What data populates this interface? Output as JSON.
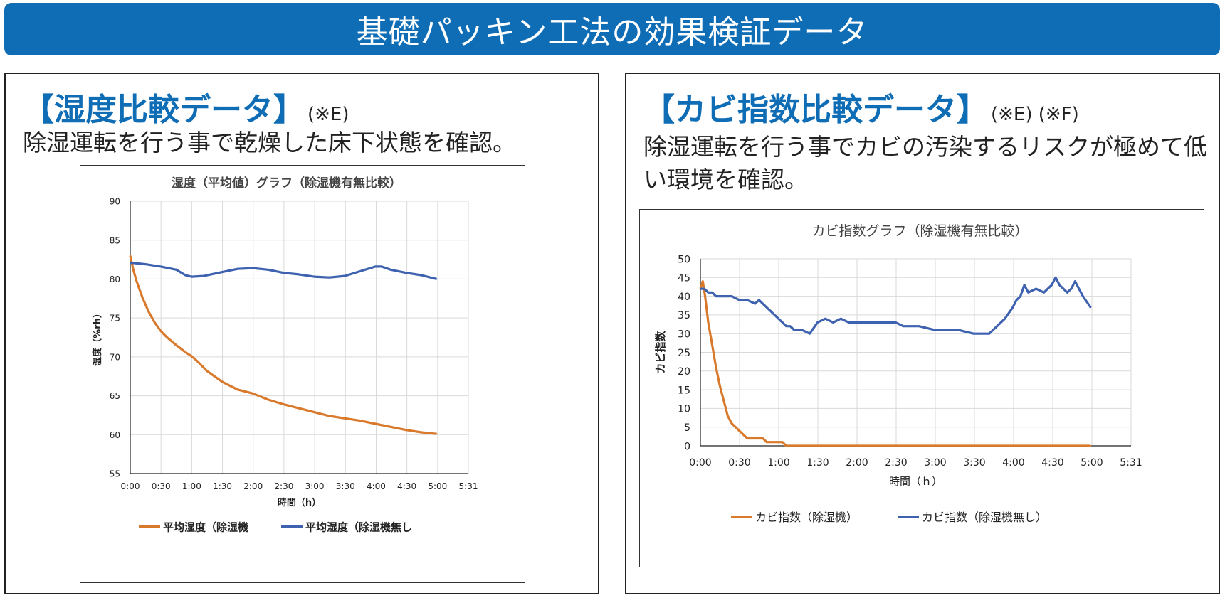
{
  "banner": {
    "title": "基礎パッキン工法の効果検証データ"
  },
  "left_panel": {
    "heading": "【湿度比較データ】",
    "heading_note": "(※E)",
    "description": "除湿運転を行う事で乾燥した床下状態を確認。"
  },
  "right_panel": {
    "heading": "【カビ指数比較データ】",
    "heading_note": "(※E) (※F)",
    "description": "除湿運転を行う事でカビの汚染するリスクが極めて低い環境を確認。"
  },
  "colors": {
    "banner": "#0f6db6",
    "heading": "#0f6db6",
    "series_orange": "#d9792c",
    "series_blue": "#3f62b0",
    "grid": "#d9d9d9"
  },
  "chart_data": [
    {
      "type": "line",
      "title": "湿度（平均値）グラフ（除湿機有無比較）",
      "xlabel": "時間（h）",
      "ylabel": "湿度（%rh）",
      "xlim": [
        0,
        5.5167
      ],
      "ylim": [
        55,
        90
      ],
      "y_ticks": [
        55,
        60,
        65,
        70,
        75,
        80,
        85,
        90
      ],
      "x_ticks": [
        "0:00",
        "0:30",
        "1:00",
        "1:30",
        "2:00",
        "2:30",
        "3:00",
        "3:30",
        "4:00",
        "4:30",
        "5:00",
        "5:31"
      ],
      "grid": true,
      "legend": "bottom",
      "series": [
        {
          "name": "平均湿度（除湿機",
          "color": "#d9792c",
          "x": [
            0,
            0.05,
            0.1,
            0.2,
            0.3,
            0.4,
            0.5,
            0.6,
            0.75,
            0.9,
            1.0,
            1.1,
            1.25,
            1.5,
            1.75,
            2.0,
            2.25,
            2.5,
            2.75,
            3.0,
            3.25,
            3.5,
            3.75,
            4.0,
            4.25,
            4.5,
            4.75,
            5.0
          ],
          "y": [
            83,
            81.2,
            79.8,
            77.6,
            75.8,
            74.4,
            73.3,
            72.5,
            71.5,
            70.6,
            70.1,
            69.4,
            68.2,
            66.8,
            65.8,
            65.3,
            64.5,
            63.9,
            63.4,
            62.9,
            62.4,
            62.1,
            61.8,
            61.4,
            61.0,
            60.6,
            60.3,
            60.1
          ]
        },
        {
          "name": "平均湿度（除湿機無し",
          "color": "#3f62b0",
          "x": [
            0,
            0.25,
            0.5,
            0.75,
            0.9,
            1.0,
            1.2,
            1.5,
            1.75,
            2.0,
            2.25,
            2.5,
            2.75,
            3.0,
            3.25,
            3.5,
            3.75,
            4.0,
            4.1,
            4.25,
            4.5,
            4.75,
            5.0
          ],
          "y": [
            82.1,
            81.9,
            81.6,
            81.2,
            80.5,
            80.3,
            80.4,
            80.9,
            81.3,
            81.4,
            81.2,
            80.8,
            80.6,
            80.3,
            80.2,
            80.4,
            81.0,
            81.6,
            81.6,
            81.2,
            80.8,
            80.5,
            80.0
          ]
        }
      ]
    },
    {
      "type": "line",
      "title": "カビ指数グラフ（除湿機有無比較）",
      "xlabel": "時間（ｈ）",
      "ylabel": "カビ指数",
      "xlim": [
        0,
        5.5167
      ],
      "ylim": [
        0,
        50
      ],
      "y_ticks": [
        0,
        5,
        10,
        15,
        20,
        25,
        30,
        35,
        40,
        45,
        50
      ],
      "x_ticks": [
        "0:00",
        "0:30",
        "1:00",
        "1:30",
        "2:00",
        "2:30",
        "3:00",
        "3:30",
        "4:00",
        "4:30",
        "5:00",
        "5:31"
      ],
      "grid": true,
      "legend": "bottom",
      "series": [
        {
          "name": "カビ指数（除湿機）",
          "color": "#d9792c",
          "x": [
            0,
            0.03,
            0.06,
            0.1,
            0.15,
            0.2,
            0.25,
            0.3,
            0.35,
            0.4,
            0.45,
            0.5,
            0.55,
            0.6,
            0.7,
            0.8,
            0.85,
            0.95,
            1.05,
            1.1,
            1.2,
            2.0,
            3.0,
            4.0,
            5.0
          ],
          "y": [
            42,
            44,
            40,
            33,
            27,
            21,
            16,
            12,
            8,
            6,
            5,
            4,
            3,
            2,
            2,
            2,
            1,
            1,
            1,
            0,
            0,
            0,
            0,
            0,
            0
          ]
        },
        {
          "name": "カビ指数（除湿機無し）",
          "color": "#3f62b0",
          "x": [
            0,
            0.05,
            0.1,
            0.15,
            0.2,
            0.3,
            0.4,
            0.5,
            0.6,
            0.7,
            0.75,
            0.8,
            0.85,
            0.9,
            0.95,
            1.0,
            1.05,
            1.1,
            1.15,
            1.2,
            1.25,
            1.3,
            1.4,
            1.5,
            1.6,
            1.7,
            1.8,
            1.9,
            2.0,
            2.2,
            2.4,
            2.5,
            2.6,
            2.8,
            3.0,
            3.2,
            3.3,
            3.5,
            3.7,
            3.8,
            3.9,
            4.0,
            4.05,
            4.1,
            4.15,
            4.2,
            4.3,
            4.4,
            4.5,
            4.55,
            4.6,
            4.7,
            4.75,
            4.8,
            4.9,
            5.0
          ],
          "y": [
            42,
            42,
            41,
            41,
            40,
            40,
            40,
            39,
            39,
            38,
            39,
            38,
            37,
            36,
            35,
            34,
            33,
            32,
            32,
            31,
            31,
            31,
            30,
            33,
            34,
            33,
            34,
            33,
            33,
            33,
            33,
            33,
            32,
            32,
            31,
            31,
            31,
            30,
            30,
            32,
            34,
            37,
            39,
            40,
            43,
            41,
            42,
            41,
            43,
            45,
            43,
            41,
            42,
            44,
            40,
            37
          ]
        }
      ]
    }
  ]
}
